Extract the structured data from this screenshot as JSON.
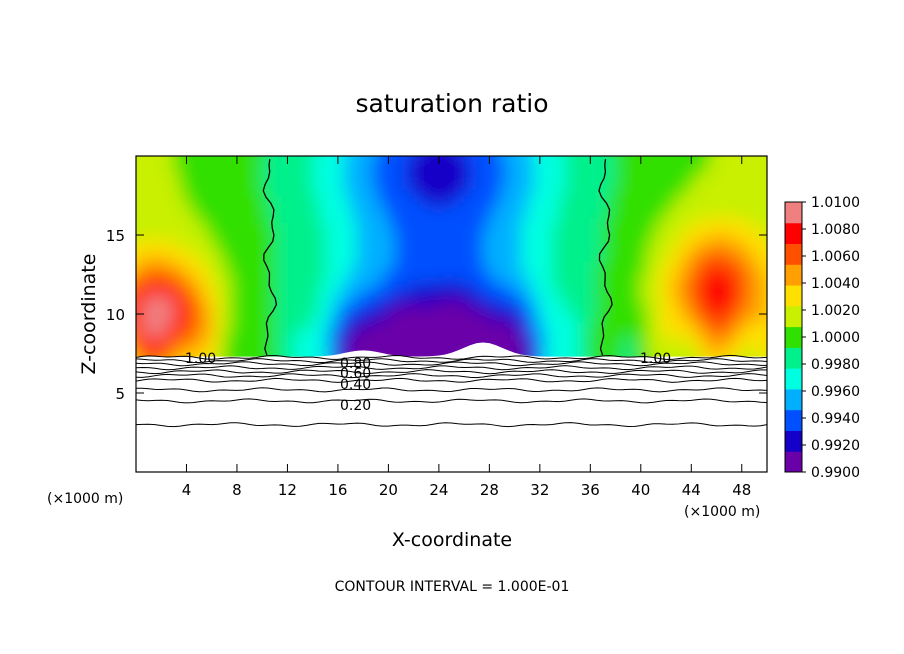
{
  "chart_data": {
    "type": "heatmap",
    "title": "saturation ratio",
    "xlabel": "X-coordinate",
    "ylabel": "Z-coordinate",
    "x_unit_label_left": "(×1000 m)",
    "x_unit_label_right": "(×1000 m)",
    "xlim": [
      0,
      50
    ],
    "ylim": [
      0,
      20
    ],
    "x_ticks": [
      4,
      8,
      12,
      16,
      20,
      24,
      28,
      32,
      36,
      40,
      44,
      48
    ],
    "y_ticks": [
      5,
      10,
      15
    ],
    "colorbar": {
      "labels": [
        "1.0100",
        "1.0080",
        "1.0060",
        "1.0040",
        "1.0020",
        "1.0000",
        "0.9980",
        "0.9960",
        "0.9940",
        "0.9920",
        "0.9900"
      ],
      "min": 0.99,
      "max": 1.01,
      "colors": [
        "#6a00a8",
        "#1400c8",
        "#0050ff",
        "#00b0ff",
        "#00ffe0",
        "#00f08c",
        "#30e000",
        "#c8f000",
        "#ffe000",
        "#ffa000",
        "#ff5000",
        "#ff0000",
        "#f08080"
      ]
    },
    "contour_labels": [
      "1.00",
      "1.00",
      "0.80",
      "0.60",
      "0.40",
      "0.20"
    ],
    "footer": "CONTOUR INTERVAL = 1.000E-01"
  }
}
